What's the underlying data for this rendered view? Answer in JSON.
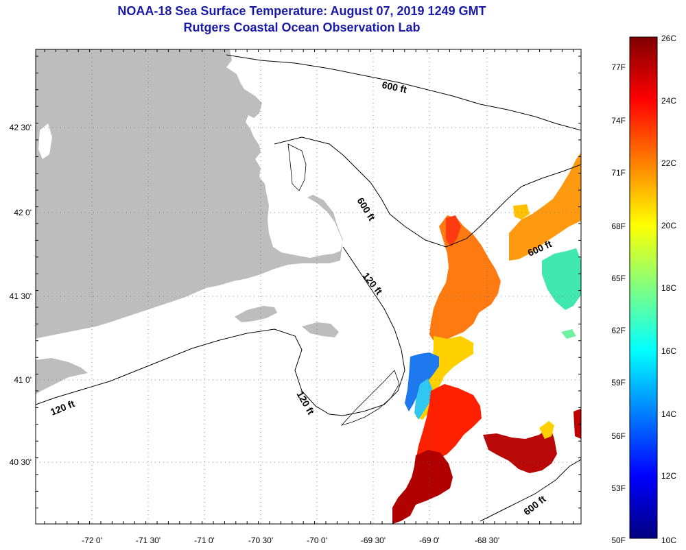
{
  "header": {
    "title": "NOAA-18 Sea Surface Temperature:  August 07, 2019 1249 GMT",
    "subtitle": "Rutgers Coastal Ocean Observation Lab"
  },
  "map": {
    "lon_labels": [
      "-72 0'",
      "-71 30'",
      "-71 0'",
      "-70 30'",
      "-70 0'",
      "-69 30'",
      "-69 0'",
      "-68 30'"
    ],
    "lat_labels": [
      "42 30'",
      "42 0'",
      "41 30'",
      "41 0'",
      "40 30'"
    ],
    "contour_labels": [
      {
        "text": "600 ft"
      },
      {
        "text": "600 ft"
      },
      {
        "text": "600 ft"
      },
      {
        "text": "600 ft"
      },
      {
        "text": "120 ft"
      },
      {
        "text": "120 ft"
      },
      {
        "text": "120 ft"
      }
    ],
    "colors": {
      "land": "#bdbdbd",
      "ocean": "#ffffff",
      "grid": "#444444"
    }
  },
  "colorbar": {
    "celsius_labels": [
      "26C",
      "24C",
      "22C",
      "20C",
      "18C",
      "16C",
      "14C",
      "12C",
      "10C"
    ],
    "fahrenheit_labels": [
      "77F",
      "74F",
      "71F",
      "68F",
      "65F",
      "62F",
      "59F",
      "56F",
      "53F",
      "50F"
    ],
    "range_c": [
      10,
      26
    ],
    "gradient": [
      "#000080",
      "#0000ff",
      "#0080ff",
      "#00ffff",
      "#80ff80",
      "#ffff00",
      "#ff8000",
      "#ff0000",
      "#800000"
    ]
  }
}
